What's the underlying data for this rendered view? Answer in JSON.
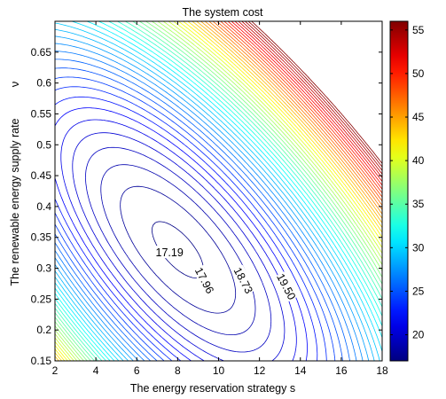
{
  "chart_data": {
    "type": "contour",
    "title": "The system cost",
    "xlabel": "The energy reservation strategy s",
    "ylabel": "The renewable energy supply rate",
    "ylabel_symbol": "ν",
    "xlim": [
      2,
      18
    ],
    "ylim": [
      0.15,
      0.7
    ],
    "x_ticks": [
      2,
      4,
      6,
      8,
      10,
      12,
      14,
      16,
      18
    ],
    "x_tick_labels": [
      "2",
      "4",
      "6",
      "8",
      "10",
      "12",
      "14",
      "16",
      "18"
    ],
    "y_ticks": [
      0.15,
      0.2,
      0.25,
      0.3,
      0.35,
      0.4,
      0.45,
      0.5,
      0.55,
      0.6,
      0.65
    ],
    "y_tick_labels": [
      "0.15",
      "0.2",
      "0.25",
      "0.3",
      "0.35",
      "0.4",
      "0.45",
      "0.5",
      "0.55",
      "0.6",
      "0.65"
    ],
    "minimum": {
      "s": 8.0,
      "v": 0.33,
      "cost": 17.0
    },
    "contour_labels": [
      {
        "text": "17.19",
        "s": 7.6,
        "v": 0.325
      },
      {
        "text": "17.96",
        "s": 9.3,
        "v": 0.28
      },
      {
        "text": "18.73",
        "s": 11.2,
        "v": 0.28
      },
      {
        "text": "19.50",
        "s": 13.3,
        "v": 0.27
      }
    ],
    "colorbar": {
      "colormap": "jet",
      "range": [
        17,
        56
      ],
      "ticks": [
        20,
        25,
        30,
        35,
        40,
        45,
        50,
        55
      ],
      "tick_labels": [
        "20",
        "25",
        "30",
        "35",
        "40",
        "45",
        "50",
        "55"
      ]
    },
    "grid": false,
    "legend": "none"
  }
}
